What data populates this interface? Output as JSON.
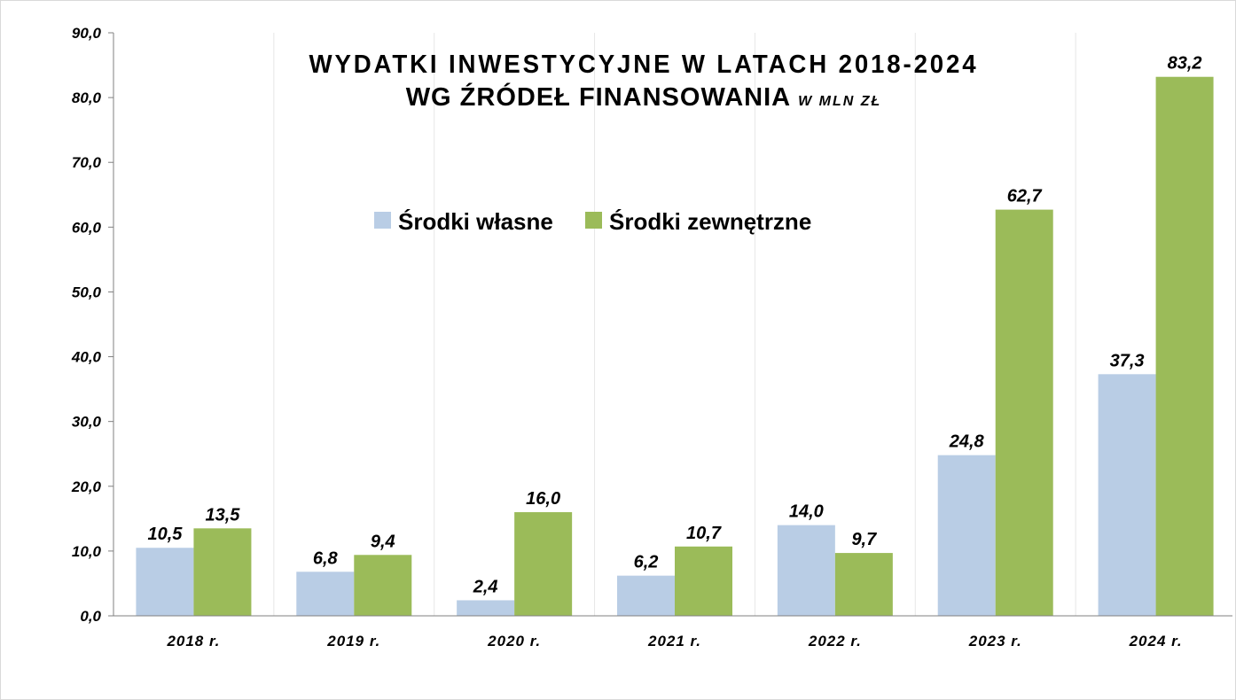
{
  "chart_data": {
    "type": "bar",
    "title_line1": "WYDATKI INWESTYCYJNE W LATACH 2018-2024",
    "title_line2": "WG ŹRÓDEŁ FINANSOWANIA",
    "title_unit": "W MLN ZŁ",
    "categories": [
      "2018 r.",
      "2019 r.",
      "2020 r.",
      "2021 r.",
      "2022 r.",
      "2023 r.",
      "2024 r."
    ],
    "series": [
      {
        "name": "Środki własne",
        "color": "#b9cde5",
        "values": [
          10.5,
          6.8,
          2.4,
          6.2,
          14.0,
          24.8,
          37.3
        ],
        "labels": [
          "10,5",
          "6,8",
          "2,4",
          "6,2",
          "14,0",
          "24,8",
          "37,3"
        ]
      },
      {
        "name": "Środki zewnętrzne",
        "color": "#9bbb59",
        "values": [
          13.5,
          9.4,
          16.0,
          10.7,
          9.7,
          62.7,
          83.2
        ],
        "labels": [
          "13,5",
          "9,4",
          "16,0",
          "10,7",
          "9,7",
          "62,7",
          "83,2"
        ]
      }
    ],
    "ylim": [
      0,
      90
    ],
    "yticks": [
      0,
      10,
      20,
      30,
      40,
      50,
      60,
      70,
      80,
      90
    ],
    "ytick_labels": [
      "0,0",
      "10,0",
      "20,0",
      "30,0",
      "40,0",
      "50,0",
      "60,0",
      "70,0",
      "80,0",
      "90,0"
    ],
    "grid": "vertical",
    "legend_position": "top-center",
    "xlabel": "",
    "ylabel": ""
  }
}
